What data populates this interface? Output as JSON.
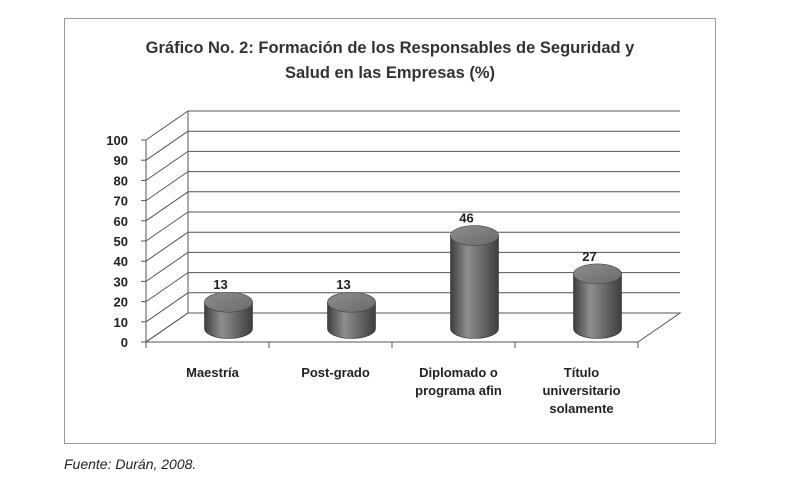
{
  "title_lines": [
    "Gráfico No. 2: Formación de los Responsables de Seguridad y",
    "Salud en las Empresas (%)"
  ],
  "source": "Fuente:  Durán, 2008.",
  "chart_data": {
    "type": "bar",
    "style": "3d-cylinder",
    "title": "Gráfico No. 2: Formación de los Responsables de Seguridad y Salud en las Empresas (%)",
    "categories": [
      [
        "Maestría"
      ],
      [
        "Post-grado"
      ],
      [
        "Diplomado o",
        "programa afin"
      ],
      [
        "Título",
        "universitario",
        "solamente"
      ]
    ],
    "values": [
      13,
      13,
      46,
      27
    ],
    "data_labels": [
      "13",
      "13",
      "46",
      "27"
    ],
    "ylim": [
      0,
      100
    ],
    "yticks": [
      "0",
      "10",
      "20",
      "30",
      "40",
      "50",
      "60",
      "70",
      "80",
      "90",
      "100"
    ],
    "grid": true,
    "legend": "none",
    "colors": {
      "bar": "#6a6a6a",
      "bar_dark": "#3e3e3e",
      "bar_light": "#8e8e8e",
      "grid": "#555555",
      "text": "#222222"
    }
  }
}
